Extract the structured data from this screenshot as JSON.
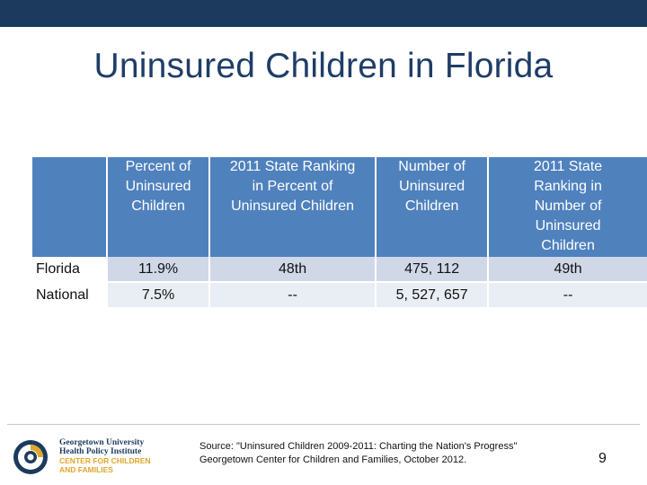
{
  "slide": {
    "title": "Uninsured Children in Florida",
    "page_number": "9"
  },
  "table": {
    "headers": [
      "",
      "Percent of Uninsured Children",
      "2011 State Ranking in Percent of Uninsured Children",
      "Number of Uninsured Children",
      "2011 State Ranking in Number of Uninsured Children"
    ],
    "rows": [
      [
        "Florida",
        "11.9%",
        "48th",
        "475, 112",
        "49th"
      ],
      [
        "National",
        "7.5%",
        "--",
        "5, 527, 657",
        "--"
      ]
    ]
  },
  "source": {
    "line1": "Source: \"Uninsured Children 2009-2011: Charting the Nation's Progress\"",
    "line2": "Georgetown Center for Children and Families, October 2012."
  },
  "logo": {
    "line1": "Georgetown University",
    "line2": "Health Policy Institute",
    "line3": "CENTER FOR CHILDREN",
    "line4": "AND FAMILIES"
  },
  "colors": {
    "top_bar": "#1b3a5e",
    "title": "#1f3d67",
    "header_fill": "#4f81bd",
    "row_fill_1": "#d0d8e8",
    "row_fill_2": "#e9edf4",
    "logo_gold": "#e0a72b"
  }
}
